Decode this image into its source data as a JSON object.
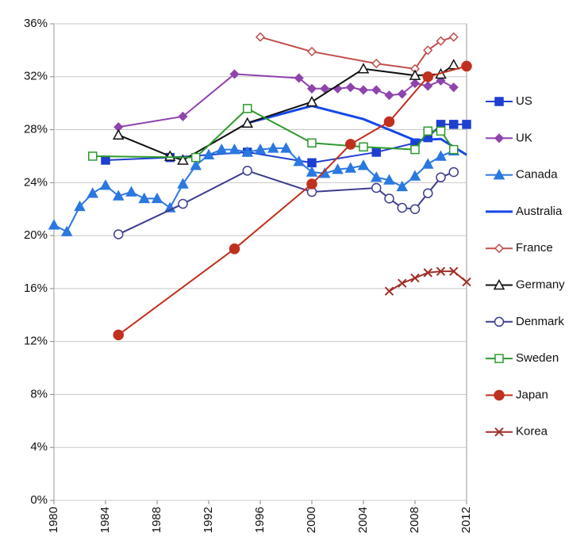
{
  "chart_data": {
    "type": "line",
    "grid": true,
    "legend": "right",
    "xlim": [
      1980,
      2012
    ],
    "xticks": [
      1980,
      1984,
      1988,
      1992,
      1996,
      2000,
      2004,
      2008,
      2012
    ],
    "ylim": [
      0,
      36
    ],
    "yticks": [
      {
        "value": 0,
        "label": "0%"
      },
      {
        "value": 4,
        "label": "4%"
      },
      {
        "value": 8,
        "label": "8%"
      },
      {
        "value": 12,
        "label": "12%"
      },
      {
        "value": 16,
        "label": "16%"
      },
      {
        "value": 20,
        "label": "20%"
      },
      {
        "value": 24,
        "label": "24%"
      },
      {
        "value": 28,
        "label": "28%"
      },
      {
        "value": 32,
        "label": "32%"
      },
      {
        "value": 36,
        "label": "36%"
      }
    ],
    "series": [
      {
        "name": "US",
        "color": "#1f3fd0",
        "marker": "square",
        "filled": true,
        "x": [
          1984,
          1989,
          1995,
          2000,
          2005,
          2008,
          2009,
          2010,
          2011,
          2012
        ],
        "values": [
          25.7,
          25.9,
          26.3,
          25.5,
          26.3,
          27.0,
          27.4,
          28.4,
          28.4,
          28.4
        ]
      },
      {
        "name": "UK",
        "color": "#8e44ad",
        "marker": "diamond",
        "filled": true,
        "x": [
          1985,
          1990,
          1994,
          1999,
          2000,
          2001,
          2002,
          2003,
          2004,
          2005,
          2006,
          2007,
          2008,
          2009,
          2010,
          2011
        ],
        "values": [
          28.2,
          29.0,
          32.2,
          31.9,
          31.1,
          31.1,
          31.1,
          31.2,
          31.0,
          31.0,
          30.6,
          30.7,
          31.5,
          31.3,
          31.7,
          31.2
        ]
      },
      {
        "name": "Canada",
        "color": "#2a78e0",
        "marker": "triangle",
        "filled": true,
        "x": [
          1980,
          1981,
          1982,
          1983,
          1984,
          1985,
          1986,
          1987,
          1988,
          1989,
          1990,
          1991,
          1992,
          1993,
          1994,
          1995,
          1996,
          1997,
          1998,
          1999,
          2000,
          2001,
          2002,
          2003,
          2004,
          2005,
          2006,
          2007,
          2008,
          2009,
          2010,
          2011
        ],
        "values": [
          20.8,
          20.3,
          22.2,
          23.2,
          23.8,
          23.0,
          23.3,
          22.8,
          22.8,
          22.1,
          23.9,
          25.3,
          26.1,
          26.5,
          26.5,
          26.3,
          26.5,
          26.6,
          26.6,
          25.6,
          24.8,
          24.7,
          25.0,
          25.1,
          25.3,
          24.4,
          24.2,
          23.7,
          24.5,
          25.4,
          26.0,
          26.4
        ]
      },
      {
        "name": "Australia",
        "color": "#1648e8",
        "marker": "none",
        "filled": false,
        "x": [
          1995,
          2000,
          2004,
          2008,
          2010,
          2012
        ],
        "values": [
          28.5,
          29.8,
          28.8,
          27.2,
          27.3,
          26.1
        ]
      },
      {
        "name": "France",
        "color": "#c0504d",
        "marker": "diamond",
        "filled": false,
        "x": [
          1996,
          2000,
          2005,
          2008,
          2009,
          2010,
          2011
        ],
        "values": [
          35.0,
          33.9,
          33.0,
          32.6,
          34.0,
          34.7,
          35.0
        ]
      },
      {
        "name": "Germany",
        "color": "#111111",
        "marker": "triangle",
        "filled": false,
        "x": [
          1985,
          1989,
          1990,
          1995,
          2000,
          2004,
          2008,
          2010,
          2011
        ],
        "values": [
          27.6,
          26.0,
          25.7,
          28.5,
          30.1,
          32.6,
          32.1,
          32.2,
          32.9
        ]
      },
      {
        "name": "Denmark",
        "color": "#3d3d8f",
        "marker": "circle",
        "filled": false,
        "x": [
          1985,
          1990,
          1995,
          2000,
          2005,
          2006,
          2007,
          2008,
          2009,
          2010,
          2011
        ],
        "values": [
          20.1,
          22.4,
          24.9,
          23.3,
          23.6,
          22.8,
          22.1,
          22.0,
          23.2,
          24.4,
          24.8
        ]
      },
      {
        "name": "Sweden",
        "color": "#2f9a2f",
        "marker": "square",
        "filled": false,
        "x": [
          1983,
          1991,
          1995,
          2000,
          2004,
          2008,
          2009,
          2010,
          2011
        ],
        "values": [
          26.0,
          25.9,
          29.6,
          27.0,
          26.7,
          26.5,
          27.9,
          27.9,
          26.5
        ]
      },
      {
        "name": "Japan",
        "color": "#c0301e",
        "marker": "circle",
        "filled": true,
        "x": [
          1985,
          1994,
          2000,
          2003,
          2006,
          2009,
          2012
        ],
        "values": [
          12.5,
          19.0,
          23.9,
          26.9,
          28.6,
          32.0,
          32.8
        ]
      },
      {
        "name": "Korea",
        "color": "#a03028",
        "marker": "x",
        "filled": false,
        "x": [
          2006,
          2007,
          2008,
          2009,
          2010,
          2011,
          2012
        ],
        "values": [
          15.8,
          16.4,
          16.8,
          17.2,
          17.3,
          17.3,
          16.5
        ]
      }
    ]
  }
}
